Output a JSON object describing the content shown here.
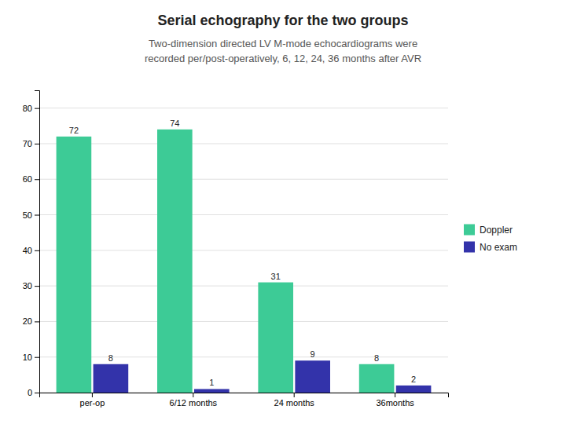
{
  "chart_data": {
    "type": "bar",
    "title": "Serial echography for the two groups",
    "subtitle": [
      "Two-dimension directed LV M-mode echocardiograms were",
      "recorded per/post-operatively, 6, 12, 24, 36 months after AVR"
    ],
    "categories": [
      "per-op",
      "6/12 months",
      "24 months",
      "36months"
    ],
    "series": [
      {
        "name": "Doppler",
        "color": "#3DCB96",
        "values": [
          72,
          74,
          31,
          8
        ]
      },
      {
        "name": "No exam",
        "color": "#3333AA",
        "values": [
          8,
          1,
          9,
          2
        ]
      }
    ],
    "ylim": [
      0,
      85
    ],
    "yticks": [
      0,
      10,
      20,
      30,
      40,
      50,
      60,
      70,
      80
    ],
    "grid": true,
    "legend": "right",
    "data_labels": true
  }
}
